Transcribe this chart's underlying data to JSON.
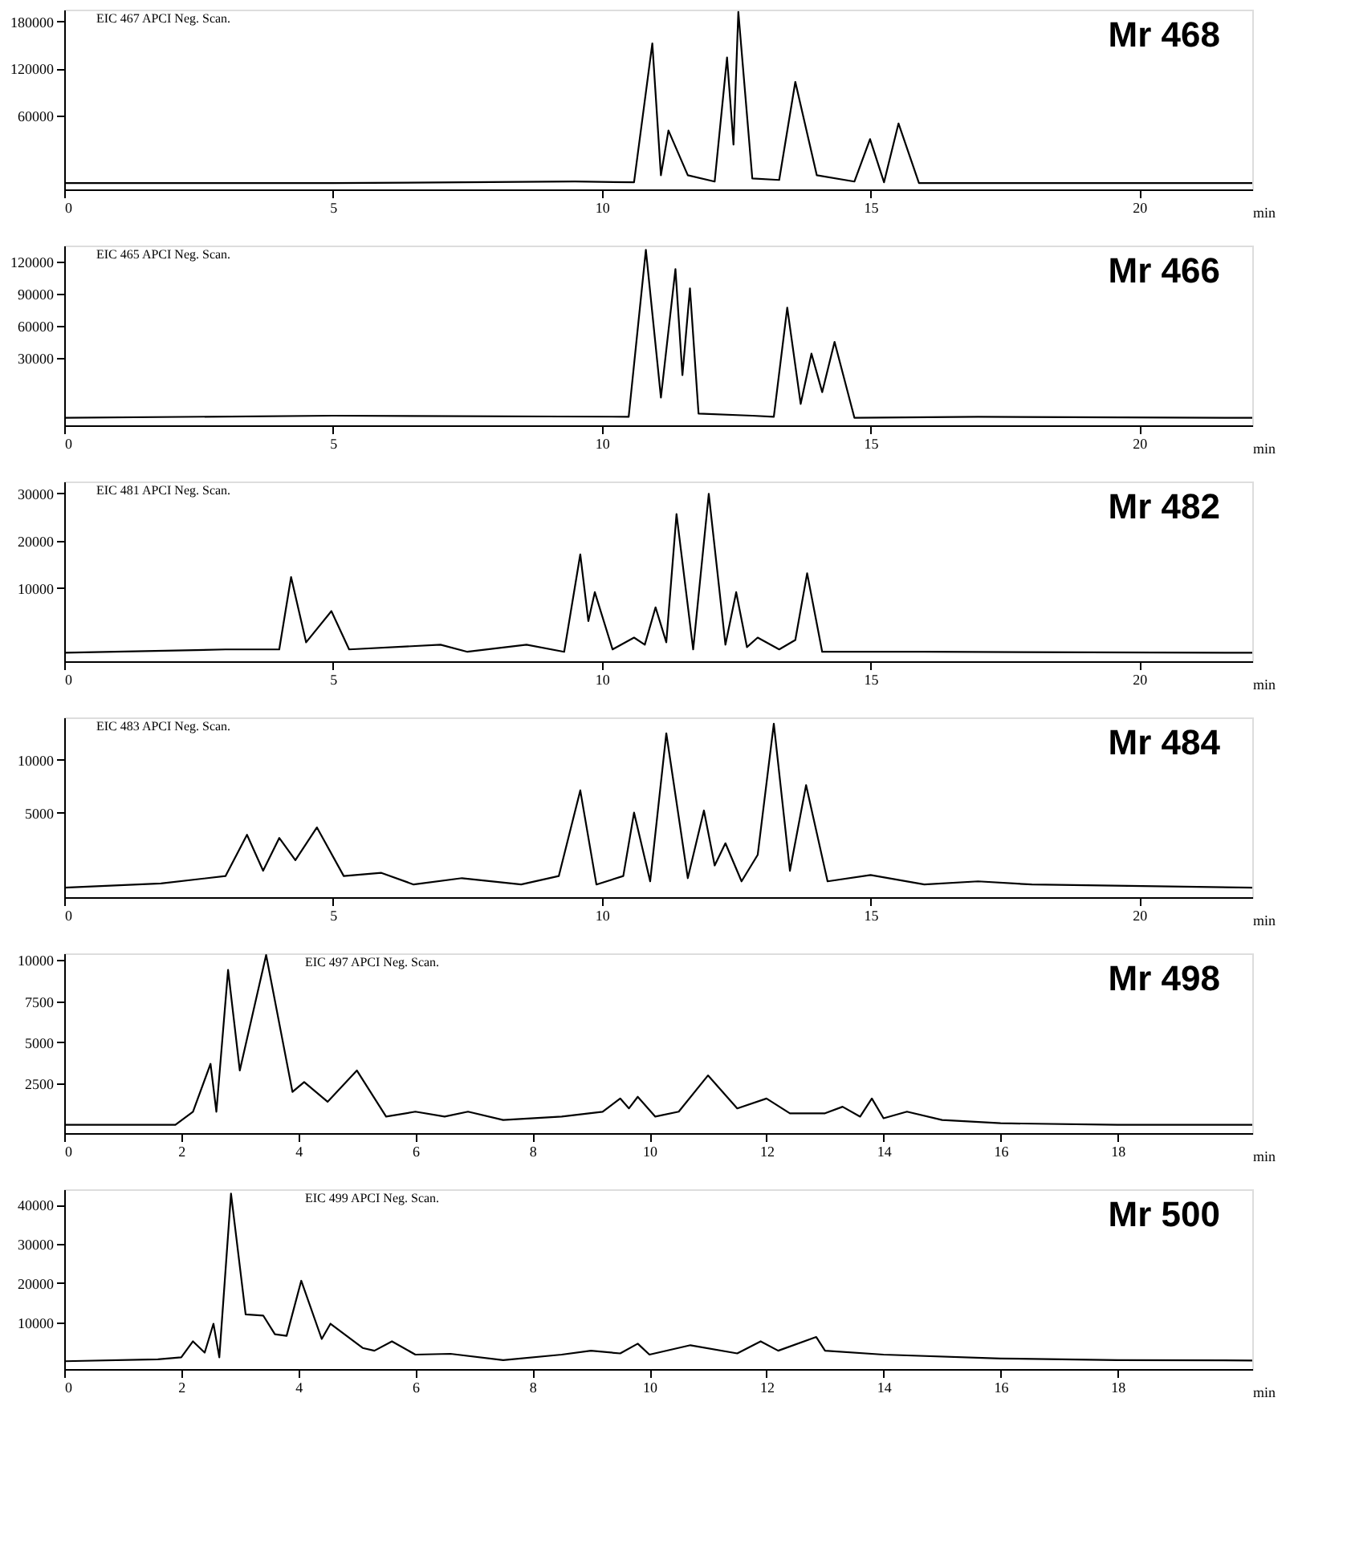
{
  "chart_data": [
    {
      "type": "line",
      "title": "Mr 468",
      "annotations": [
        "EIC 467    APCI Neg. Scan."
      ],
      "xlabel": "min",
      "xlim": [
        0,
        22.1
      ],
      "xticks": [
        0,
        5,
        10,
        15,
        20
      ],
      "ylim": [
        -34000,
        195000
      ],
      "yticks": [
        60000,
        120000,
        180000
      ],
      "grid": false,
      "series": [
        {
          "color": "#000000",
          "x": [
            0,
            5,
            9.5,
            10.6,
            10.94,
            11.1,
            11.24,
            11.6,
            12.1,
            12.33,
            12.45,
            12.54,
            12.8,
            13.3,
            13.6,
            14.0,
            14.7,
            14.99,
            15.25,
            15.52,
            15.9,
            17,
            22.1
          ],
          "values": [
            -26000,
            -26000,
            -24000,
            -25000,
            152000,
            -16000,
            41000,
            -16000,
            -24000,
            134000,
            23000,
            192000,
            -20000,
            -22000,
            103000,
            -16000,
            -24000,
            30000,
            -25000,
            50000,
            -26000,
            -26000,
            -26000
          ]
        }
      ]
    },
    {
      "type": "line",
      "title": "Mr 466",
      "annotations": [
        "EIC 465    APCI Neg. Scan."
      ],
      "xlabel": "min",
      "xlim": [
        0,
        22.1
      ],
      "xticks": [
        0,
        5,
        10,
        15,
        20
      ],
      "ylim": [
        -33000,
        135000
      ],
      "yticks": [
        30000,
        60000,
        90000,
        120000
      ],
      "grid": false,
      "series": [
        {
          "color": "#000000",
          "x": [
            0,
            5,
            10.5,
            10.82,
            11.1,
            11.37,
            11.5,
            11.64,
            11.8,
            12.8,
            13.2,
            13.45,
            13.7,
            13.9,
            14.1,
            14.33,
            14.7,
            17,
            22.1
          ],
          "values": [
            -26000,
            -24000,
            -25000,
            131000,
            -7000,
            113000,
            14000,
            95000,
            -22000,
            -24000,
            -25000,
            77000,
            -13000,
            34000,
            -2000,
            45000,
            -26000,
            -25000,
            -26000
          ]
        }
      ]
    },
    {
      "type": "line",
      "title": "Mr 482",
      "annotations": [
        "EIC 481    APCI Neg. Scan."
      ],
      "xlabel": "min",
      "xlim": [
        0,
        22.1
      ],
      "xticks": [
        0,
        5,
        10,
        15,
        20
      ],
      "ylim": [
        -5500,
        32500
      ],
      "yticks": [
        10000,
        20000,
        30000
      ],
      "grid": false,
      "series": [
        {
          "color": "#000000",
          "x": [
            0,
            3,
            4.0,
            4.22,
            4.5,
            4.97,
            5.3,
            7.0,
            7.5,
            8.6,
            9.3,
            9.6,
            9.75,
            9.87,
            10.2,
            10.6,
            10.8,
            11.0,
            11.2,
            11.39,
            11.7,
            11.99,
            12.3,
            12.5,
            12.7,
            12.9,
            13.3,
            13.6,
            13.82,
            14.1,
            16,
            22.1
          ],
          "values": [
            -3700,
            -3000,
            -3000,
            12300,
            -1500,
            5100,
            -3000,
            -2000,
            -3500,
            -2000,
            -3500,
            17100,
            3000,
            9100,
            -3000,
            -500,
            -2000,
            5900,
            -1500,
            25600,
            -3000,
            29900,
            -2000,
            9100,
            -2500,
            -500,
            -3000,
            -1000,
            13100,
            -3500,
            -3500,
            -3700
          ]
        }
      ]
    },
    {
      "type": "line",
      "title": "Mr 484",
      "annotations": [
        "EIC 483    APCI Neg. Scan."
      ],
      "xlabel": "min",
      "xlim": [
        0,
        22.1
      ],
      "xticks": [
        0,
        5,
        10,
        15,
        20
      ],
      "ylim": [
        -3000,
        14000
      ],
      "yticks": [
        5000,
        10000
      ],
      "grid": false,
      "series": [
        {
          "color": "#000000",
          "x": [
            0,
            1.8,
            3.0,
            3.4,
            3.7,
            4.0,
            4.3,
            4.7,
            5.2,
            5.9,
            6.5,
            7.4,
            8.5,
            9.2,
            9.6,
            9.9,
            10.4,
            10.6,
            10.9,
            11.2,
            11.6,
            11.9,
            12.1,
            12.3,
            12.6,
            12.9,
            13.2,
            13.5,
            13.8,
            14.2,
            15.0,
            16,
            17.0,
            18,
            22.1
          ],
          "values": [
            -2100,
            -1700,
            -1000,
            2900,
            -500,
            2600,
            500,
            3600,
            -1000,
            -700,
            -1800,
            -1200,
            -1800,
            -1000,
            7100,
            -1800,
            -1000,
            5000,
            -1500,
            12500,
            -1200,
            5200,
            0,
            2100,
            -1500,
            1000,
            13400,
            -500,
            7600,
            -1500,
            -900,
            -1800,
            -1500,
            -1800,
            -2100
          ]
        }
      ]
    },
    {
      "type": "line",
      "title": "Mr 498",
      "annotations": [
        "EIC 497    APCI Neg. Scan."
      ],
      "xlabel": "min",
      "xlim": [
        0,
        20.3
      ],
      "xticks": [
        0,
        2,
        4,
        6,
        8,
        10,
        12,
        14,
        16,
        18
      ],
      "ylim": [
        -500,
        10400
      ],
      "yticks": [
        2500,
        5000,
        7500,
        10000
      ],
      "grid": false,
      "series": [
        {
          "color": "#000000",
          "x": [
            0,
            1.9,
            2.2,
            2.5,
            2.6,
            2.8,
            3.0,
            3.45,
            3.9,
            4.1,
            4.5,
            5.0,
            5.5,
            6.0,
            6.5,
            6.9,
            7.5,
            8.5,
            9.2,
            9.5,
            9.65,
            9.8,
            10.1,
            10.5,
            11.0,
            11.5,
            12.0,
            12.4,
            13.0,
            13.3,
            13.6,
            13.8,
            14.0,
            14.4,
            15.0,
            16,
            18,
            20.3
          ],
          "values": [
            0,
            0,
            800,
            3700,
            800,
            9400,
            3300,
            10300,
            2000,
            2600,
            1400,
            3300,
            500,
            800,
            500,
            800,
            300,
            500,
            800,
            1600,
            1000,
            1700,
            500,
            800,
            3000,
            1000,
            1600,
            700,
            700,
            1100,
            500,
            1600,
            400,
            800,
            300,
            100,
            0,
            0
          ]
        }
      ]
    },
    {
      "type": "line",
      "title": "Mr 500",
      "annotations": [
        "EIC 499    APCI Neg. Scan."
      ],
      "xlabel": "min",
      "xlim": [
        0,
        20.3
      ],
      "xticks": [
        0,
        2,
        4,
        6,
        8,
        10,
        12,
        14,
        16,
        18
      ],
      "ylim": [
        -2000,
        44000
      ],
      "yticks": [
        10000,
        20000,
        30000,
        40000
      ],
      "grid": false,
      "series": [
        {
          "color": "#000000",
          "x": [
            0,
            1.6,
            2.0,
            2.2,
            2.4,
            2.55,
            2.65,
            2.85,
            3.1,
            3.4,
            3.6,
            3.8,
            4.05,
            4.4,
            4.55,
            5.1,
            5.3,
            5.6,
            6.0,
            6.6,
            7.5,
            8.5,
            9.0,
            9.5,
            9.8,
            10.0,
            10.7,
            11.5,
            11.9,
            12.2,
            12.85,
            13.0,
            14,
            16,
            18,
            20.3
          ],
          "values": [
            0,
            500,
            1000,
            5100,
            2200,
            9600,
            1000,
            42900,
            12000,
            11700,
            6900,
            6500,
            20600,
            5700,
            9600,
            3400,
            2700,
            5100,
            1700,
            1900,
            300,
            1700,
            2700,
            2000,
            4500,
            1700,
            4100,
            2000,
            5100,
            2700,
            6200,
            2700,
            1700,
            700,
            300,
            200
          ]
        }
      ]
    }
  ]
}
